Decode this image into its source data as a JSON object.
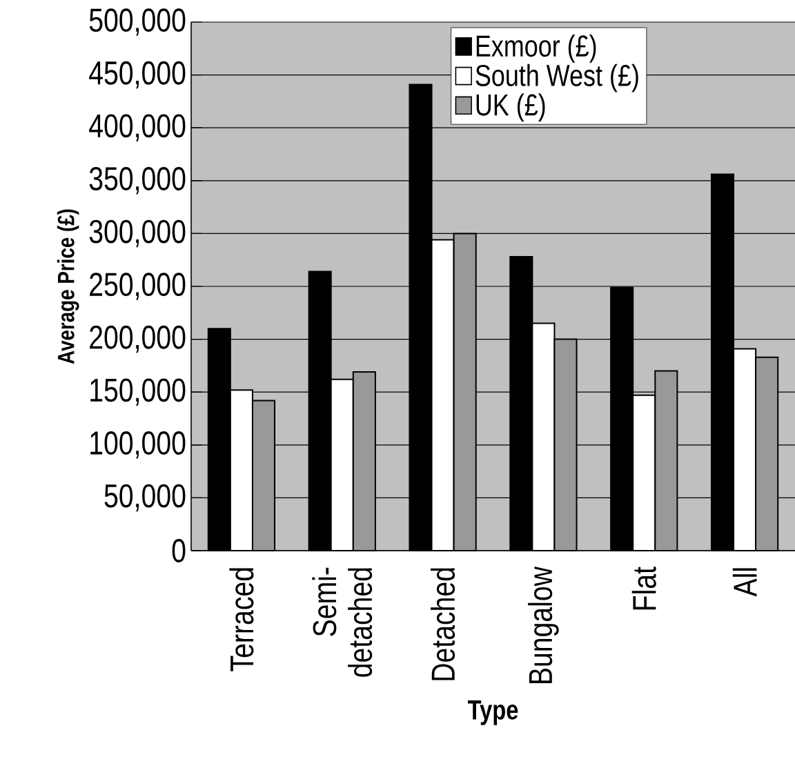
{
  "chart_data": {
    "type": "bar",
    "xlabel": "Type",
    "ylabel": "Average Price (£)",
    "categories": [
      "Terraced",
      "Semi-detached",
      "Detached",
      "Bungalow",
      "Flat",
      "All"
    ],
    "series": [
      {
        "name": "Exmoor (£)",
        "color": "#000000",
        "values": [
          210000,
          264000,
          441000,
          278000,
          249000,
          356000
        ]
      },
      {
        "name": "South West (£)",
        "color": "#ffffff",
        "values": [
          152000,
          162000,
          294000,
          215000,
          147000,
          191000
        ]
      },
      {
        "name": "UK (£)",
        "color": "#999999",
        "values": [
          142000,
          169000,
          300000,
          200000,
          170000,
          183000
        ]
      }
    ],
    "ylim": [
      0,
      500000
    ],
    "yticks": [
      0,
      {
        "value": 50000,
        "label": "50,000"
      },
      {
        "value": 100000,
        "label": "100,000"
      },
      {
        "value": 150000,
        "label": "150,000"
      },
      {
        "value": 200000,
        "label": "200,000"
      },
      {
        "value": 250000,
        "label": "250,000"
      },
      {
        "value": 300000,
        "label": "300,000"
      },
      {
        "value": 350000,
        "label": "350,000"
      },
      {
        "value": 400000,
        "label": "400,000"
      },
      {
        "value": 450000,
        "label": "450,000"
      },
      {
        "value": 500000,
        "label": "500,000"
      }
    ],
    "grid": "y",
    "legend": "top right"
  }
}
